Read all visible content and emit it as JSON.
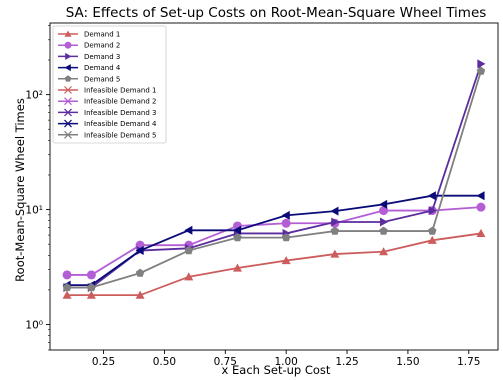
{
  "chart_data": {
    "type": "line",
    "title": "SA: Effects of Set-up Costs on Root-Mean-Square Wheel Times",
    "xlabel": "x Each Set-up Cost",
    "ylabel": "Root-Mean-Square Wheel Times",
    "x_scale": "linear",
    "y_scale": "log",
    "xlim": [
      0.03,
      1.87
    ],
    "ylim": [
      0.6,
      420
    ],
    "x_ticks": [
      0.25,
      0.5,
      0.75,
      1.0,
      1.25,
      1.5,
      1.75
    ],
    "x_tick_labels": [
      "0.25",
      "0.50",
      "0.75",
      "1.00",
      "1.25",
      "1.50",
      "1.75"
    ],
    "y_ticks": [
      1,
      10,
      100
    ],
    "y_tick_labels": [
      "10⁰",
      "10¹",
      "10²"
    ],
    "grid": false,
    "legend_position": "upper-left",
    "x": [
      0.1,
      0.2,
      0.4,
      0.6,
      0.8,
      1.0,
      1.2,
      1.4,
      1.6,
      1.8
    ],
    "series": [
      {
        "name": "Demand 1",
        "color": "#cd5c5c",
        "marker": "triangle-up",
        "values": [
          1.8,
          1.8,
          1.8,
          2.6,
          3.1,
          3.6,
          4.1,
          4.3,
          5.4,
          6.2
        ]
      },
      {
        "name": "Demand 2",
        "color": "#b45ed6",
        "marker": "circle",
        "values": [
          2.7,
          2.7,
          4.9,
          4.9,
          7.2,
          7.6,
          7.6,
          9.8,
          9.8,
          10.5
        ]
      },
      {
        "name": "Demand 3",
        "color": "#5b2d9e",
        "marker": "triangle-right",
        "values": [
          2.1,
          2.1,
          4.4,
          4.6,
          6.2,
          6.2,
          7.8,
          7.8,
          9.8,
          185
        ]
      },
      {
        "name": "Demand 4",
        "color": "#0a0a78",
        "marker": "triangle-left",
        "values": [
          2.2,
          2.2,
          4.4,
          6.6,
          6.6,
          8.9,
          9.7,
          11.1,
          13.2,
          13.2
        ]
      },
      {
        "name": "Demand 5",
        "color": "#808080",
        "marker": "pentagon",
        "values": [
          2.1,
          2.1,
          2.8,
          4.4,
          5.7,
          5.7,
          6.5,
          6.5,
          6.5,
          160
        ]
      }
    ],
    "infeasible_series": [
      {
        "name": "Infeasible Demand 1",
        "color": "#cd5c5c",
        "marker": "x",
        "values": []
      },
      {
        "name": "Infeasible Demand 2",
        "color": "#b45ed6",
        "marker": "x",
        "values": []
      },
      {
        "name": "Infeasible Demand 3",
        "color": "#5b2d9e",
        "marker": "x",
        "values": []
      },
      {
        "name": "Infeasible Demand 4",
        "color": "#0a0a78",
        "marker": "x",
        "values": []
      },
      {
        "name": "Infeasible Demand 5",
        "color": "#808080",
        "marker": "x",
        "values": []
      }
    ]
  }
}
